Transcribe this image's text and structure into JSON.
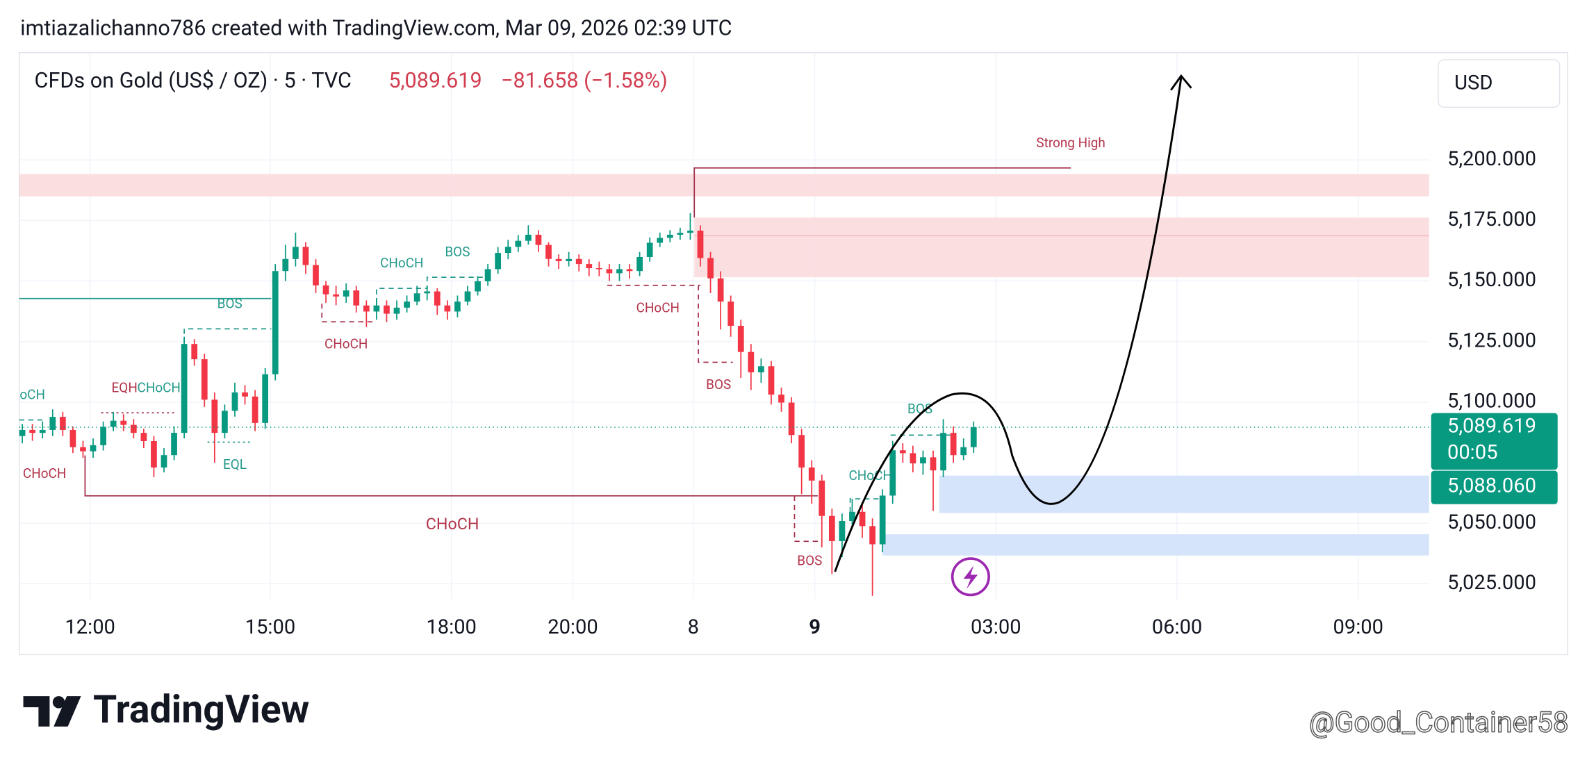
{
  "header": "imtiazalichanno786 created with TradingView.com, Mar 09, 2026 02:39 UTC",
  "legend": {
    "symbol": "CFDs on Gold (US$ / OZ) · 5 · TVC",
    "price": "5,089.619",
    "change": "−81.658 (−1.58%)"
  },
  "currency": "USD",
  "countdown": "00:05",
  "brand": "TradingView",
  "watermark": "@Good_Container58",
  "annotations": [
    "Strong High",
    "BOS",
    "CHoCH",
    "BOS",
    "CHoCH",
    "CHoCH",
    "oCH",
    "EQH",
    "CHoCH",
    "BOS",
    "BOS",
    "EQL",
    "CHoCH",
    "CHoCH",
    "CHoCH",
    "BOS"
  ],
  "chart_data": {
    "type": "candlestick",
    "up_color": "#089981",
    "down_color": "#f23645",
    "ylim": [
      5018.7,
      5244.3
    ],
    "xlim": [
      -0.3,
      139.0
    ],
    "grid": true,
    "yticks": [
      {
        "value": 5025,
        "label": "5,025.000"
      },
      {
        "value": 5050,
        "label": "5,050.000"
      },
      {
        "value": 5100,
        "label": "5,100.000"
      },
      {
        "value": 5125,
        "label": "5,125.000"
      },
      {
        "value": 5150,
        "label": "5,150.000"
      },
      {
        "value": 5175,
        "label": "5,175.000"
      },
      {
        "value": 5200,
        "label": "5,200.000"
      }
    ],
    "xticks": [
      {
        "value": 6.7,
        "label": "12:00"
      },
      {
        "value": 24.5,
        "label": "15:00"
      },
      {
        "value": 42.4,
        "label": "18:00"
      },
      {
        "value": 54.4,
        "label": "20:00"
      },
      {
        "value": 66.3,
        "label": "8"
      },
      {
        "value": 78.3,
        "label": "9"
      },
      {
        "value": 96.2,
        "label": "03:00"
      },
      {
        "value": 114.1,
        "label": "06:00"
      },
      {
        "value": 132.0,
        "label": "09:00"
      }
    ],
    "price_labels": [
      {
        "value": 5089.619,
        "label": "5,089.619"
      },
      {
        "value": 5088.06,
        "label": "5,088.060"
      }
    ],
    "open": [
      5086.0,
      5088.5,
      5087.3,
      5088.5,
      5093.9,
      5088.5,
      5081.4,
      5079.7,
      5082.2,
      5089.8,
      5092.3,
      5090.6,
      5087.3,
      5083.9,
      5073.0,
      5078.1,
      5087.3,
      5124.0,
      5117.7,
      5101.0,
      5087.3,
      5096.4,
      5104.0,
      5102.3,
      5091.4,
      5111.5,
      5154.1,
      5159.1,
      5164.1,
      5156.6,
      5148.2,
      5144.5,
      5143.6,
      5146.1,
      5139.9,
      5137.4,
      5139.9,
      5136.5,
      5139.0,
      5141.5,
      5144.9,
      5145.7,
      5139.9,
      5137.4,
      5141.5,
      5145.7,
      5149.9,
      5154.9,
      5161.6,
      5164.1,
      5166.6,
      5169.1,
      5164.9,
      5159.1,
      5158.2,
      5159.1,
      5157.0,
      5155.3,
      5154.9,
      5153.2,
      5154.9,
      5154.1,
      5159.9,
      5165.8,
      5167.8,
      5169.1,
      5169.9,
      5170.8,
      5159.5,
      5151.1,
      5141.5,
      5131.5,
      5120.7,
      5112.3,
      5114.8,
      5103.1,
      5099.8,
      5086.4,
      5073.0,
      5067.6,
      5053.0,
      5042.6,
      5050.9,
      5054.7,
      5048.8,
      5041.3,
      5061.4,
      5080.1,
      5078.9,
      5074.7,
      5077.2,
      5071.8,
      5087.3,
      5078.1,
      5081.4
    ],
    "high": [
      5091,
      5091,
      5092,
      5097,
      5096,
      5090,
      5084,
      5085,
      5092,
      5096,
      5095,
      5093,
      5089,
      5086,
      5081,
      5090,
      5127,
      5126,
      5120,
      5104,
      5099,
      5108,
      5107,
      5105,
      5114,
      5157,
      5165,
      5170,
      5166,
      5159,
      5150,
      5148,
      5149,
      5148,
      5142,
      5143,
      5142,
      5142,
      5144,
      5148,
      5148,
      5147,
      5142,
      5144,
      5148,
      5152,
      5157,
      5164,
      5167,
      5169,
      5173,
      5171,
      5166,
      5161,
      5162,
      5161,
      5159,
      5158,
      5157,
      5157,
      5157,
      5162,
      5168,
      5170,
      5171,
      5172,
      5178,
      5173,
      5162,
      5154,
      5144,
      5134,
      5124,
      5118,
      5117,
      5106,
      5102,
      5089,
      5076,
      5070,
      5056,
      5054,
      5060,
      5058,
      5052,
      5064,
      5084,
      5083,
      5082,
      5080,
      5080,
      5093,
      5090,
      5085,
      5092
    ],
    "low": [
      5083,
      5084,
      5085,
      5086,
      5086,
      5079,
      5077,
      5077,
      5080,
      5088,
      5088,
      5085,
      5081,
      5069,
      5071,
      5076,
      5085,
      5115,
      5098,
      5075,
      5085,
      5094,
      5099,
      5088,
      5089,
      5109,
      5150,
      5156,
      5153,
      5145,
      5141,
      5140,
      5141,
      5137,
      5131,
      5134,
      5133,
      5134,
      5137,
      5140,
      5142,
      5136,
      5134,
      5135,
      5140,
      5144,
      5148,
      5153,
      5159,
      5162,
      5165,
      5162,
      5156,
      5155,
      5156,
      5154,
      5152,
      5152,
      5150,
      5150,
      5151,
      5152,
      5158,
      5164,
      5166,
      5167,
      5167,
      5156,
      5145,
      5130,
      5127,
      5110,
      5105,
      5108,
      5099,
      5096,
      5083,
      5062,
      5058,
      5040,
      5029,
      5036,
      5048,
      5044,
      5020,
      5038,
      5058,
      5075,
      5071,
      5070,
      5055,
      5069,
      5075,
      5076,
      5079
    ],
    "close": [
      5088.5,
      5087.3,
      5088.5,
      5093.9,
      5088.5,
      5081.4,
      5079.7,
      5082.2,
      5089.8,
      5092.3,
      5090.6,
      5087.3,
      5083.9,
      5073.0,
      5078.1,
      5087.3,
      5124.0,
      5117.7,
      5101.0,
      5087.3,
      5096.4,
      5104.0,
      5102.3,
      5091.4,
      5111.5,
      5154.1,
      5159.1,
      5164.1,
      5156.6,
      5148.2,
      5144.5,
      5143.6,
      5146.1,
      5139.9,
      5137.4,
      5139.9,
      5136.5,
      5139.0,
      5141.5,
      5144.9,
      5145.7,
      5139.9,
      5137.4,
      5141.5,
      5145.7,
      5149.9,
      5154.9,
      5161.6,
      5164.1,
      5166.6,
      5169.1,
      5164.9,
      5159.1,
      5158.2,
      5159.1,
      5157.0,
      5155.3,
      5154.9,
      5153.2,
      5154.9,
      5154.1,
      5159.9,
      5165.8,
      5167.8,
      5169.1,
      5169.9,
      5170.8,
      5159.5,
      5151.1,
      5141.5,
      5131.5,
      5120.7,
      5112.3,
      5114.8,
      5103.1,
      5099.8,
      5086.4,
      5073.0,
      5067.6,
      5053.0,
      5042.6,
      5050.9,
      5054.7,
      5048.8,
      5041.3,
      5061.4,
      5080.1,
      5078.9,
      5074.7,
      5077.2,
      5071.8,
      5087.3,
      5078.1,
      5081.4,
      5089.6
    ]
  }
}
